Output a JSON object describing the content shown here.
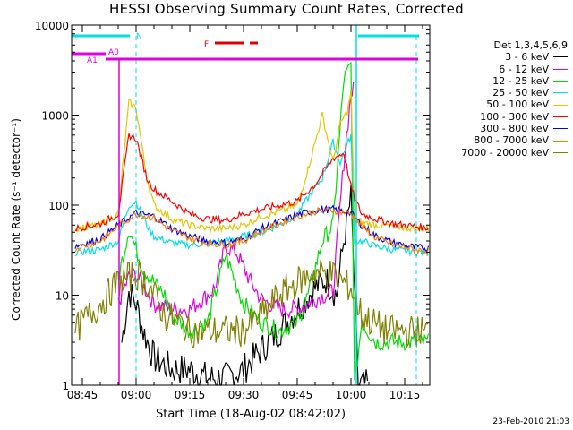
{
  "chart_data": {
    "type": "line",
    "title": "HESSI Observing Summary Count Rates, Corrected",
    "xlabel": "Start Time (18-Aug-02 08:42:02)",
    "ylabel": "Corrected Count Rate (s⁻¹ detector⁻¹)",
    "yscale": "log",
    "ylim": [
      1,
      10000
    ],
    "xlim_minutes": [
      "08:42",
      "10:22"
    ],
    "x_ticks": [
      "08:45",
      "09:00",
      "09:15",
      "09:30",
      "09:45",
      "10:00",
      "10:15"
    ],
    "y_ticks": [
      "1",
      "10",
      "100",
      "1000",
      "10000"
    ],
    "stamp": "23-Feb-2010 21:03",
    "legend_header": "Det 1,3,4,5,6,9",
    "legend_position": "right",
    "series": [
      {
        "name": "3 - 6 keV",
        "color": "#000000",
        "x": [
          "08:43",
          "08:50",
          "08:56",
          "08:58",
          "09:00",
          "09:02",
          "09:05",
          "09:10",
          "09:15",
          "09:20",
          "09:25",
          "09:30",
          "09:35",
          "09:40",
          "09:45",
          "09:50",
          "09:53",
          "09:56",
          "09:58",
          "10:00",
          "10:02",
          "10:05",
          "10:10"
        ],
        "y": [
          null,
          null,
          3,
          11,
          8,
          4,
          2,
          1.5,
          1.5,
          1.2,
          1.2,
          1.5,
          2.5,
          4,
          7,
          12,
          15,
          10,
          40,
          120,
          1,
          1,
          null
        ]
      },
      {
        "name": "6 - 12 keV",
        "color": "#e000e0",
        "x": [
          "08:55",
          "08:58",
          "09:00",
          "09:03",
          "09:05",
          "09:10",
          "09:15",
          "09:20",
          "09:22",
          "09:25",
          "09:28",
          "09:32",
          "09:35",
          "09:40",
          "09:45",
          "09:50",
          "09:55",
          "09:58",
          "10:00",
          "10:01"
        ],
        "y": [
          8,
          16,
          17,
          11,
          8,
          7,
          7,
          10,
          12,
          35,
          30,
          14,
          9,
          7,
          7,
          9,
          11,
          300,
          1700,
          2000
        ]
      },
      {
        "name": "12 - 25 keV",
        "color": "#00dd00",
        "x": [
          "08:43",
          "08:55",
          "08:58",
          "09:00",
          "09:02",
          "09:05",
          "09:08",
          "09:10",
          "09:15",
          "09:20",
          "09:25",
          "09:30",
          "09:35",
          "09:40",
          "09:45",
          "09:48",
          "09:52",
          "09:55",
          "09:58",
          "10:00",
          "10:01",
          "10:03",
          "10:07",
          "10:12",
          "10:18",
          "10:22"
        ],
        "y": [
          null,
          15,
          55,
          32,
          20,
          14,
          10,
          6,
          4,
          5,
          28,
          8,
          5,
          4,
          5,
          10,
          40,
          60,
          2500,
          3500,
          1,
          5,
          3,
          3,
          3,
          3
        ]
      },
      {
        "name": "25 - 50 keV",
        "color": "#00e0e0",
        "x": [
          "08:43",
          "08:50",
          "08:55",
          "08:58",
          "09:00",
          "09:03",
          "09:05",
          "09:10",
          "09:15",
          "09:20",
          "09:25",
          "09:30",
          "09:35",
          "09:40",
          "09:45",
          "09:48",
          "09:52",
          "09:55",
          "09:57",
          "10:00",
          "10:01",
          "10:03",
          "10:07",
          "10:12",
          "10:18",
          "10:22"
        ],
        "y": [
          30,
          32,
          40,
          100,
          110,
          60,
          45,
          38,
          36,
          38,
          40,
          45,
          50,
          60,
          80,
          120,
          200,
          500,
          300,
          600,
          40,
          40,
          35,
          32,
          30,
          30
        ]
      },
      {
        "name": "50 - 100 keV",
        "color": "#e0c800",
        "x": [
          "08:43",
          "08:50",
          "08:55",
          "08:58",
          "09:00",
          "09:03",
          "09:05",
          "09:10",
          "09:15",
          "09:20",
          "09:25",
          "09:30",
          "09:35",
          "09:40",
          "09:45",
          "09:48",
          "09:52",
          "09:55",
          "09:57",
          "09:59",
          "10:00",
          "10:01",
          "10:03",
          "10:07",
          "10:12",
          "10:18",
          "10:22"
        ],
        "y": [
          55,
          60,
          80,
          1400,
          1200,
          200,
          100,
          70,
          60,
          55,
          55,
          60,
          75,
          85,
          100,
          250,
          1000,
          300,
          800,
          1100,
          1800,
          70,
          65,
          60,
          58,
          55,
          55
        ]
      },
      {
        "name": "100 - 300 keV",
        "color": "#ff0000",
        "x": [
          "08:43",
          "08:50",
          "08:55",
          "08:58",
          "09:00",
          "09:03",
          "09:05",
          "09:10",
          "09:15",
          "09:20",
          "09:25",
          "09:30",
          "09:35",
          "09:40",
          "09:45",
          "09:50",
          "09:55",
          "09:58",
          "10:00",
          "10:01",
          "10:03",
          "10:07",
          "10:12",
          "10:18",
          "10:22"
        ],
        "y": [
          55,
          62,
          80,
          600,
          550,
          200,
          150,
          110,
          80,
          70,
          68,
          80,
          90,
          100,
          110,
          170,
          330,
          380,
          160,
          120,
          80,
          70,
          62,
          58,
          56
        ]
      },
      {
        "name": "300 - 800 keV",
        "color": "#0000ee",
        "x": [
          "08:43",
          "08:50",
          "08:55",
          "09:00",
          "09:05",
          "09:10",
          "09:15",
          "09:20",
          "09:25",
          "09:30",
          "09:35",
          "09:40",
          "09:45",
          "09:50",
          "09:55",
          "10:00",
          "10:03",
          "10:07",
          "10:12",
          "10:18",
          "10:22"
        ],
        "y": [
          35,
          42,
          60,
          82,
          75,
          55,
          45,
          40,
          38,
          42,
          55,
          65,
          78,
          88,
          90,
          82,
          60,
          45,
          38,
          34,
          33
        ]
      },
      {
        "name": "800 - 7000 keV",
        "color": "#ff8000",
        "x": [
          "08:43",
          "08:50",
          "08:55",
          "09:00",
          "09:05",
          "09:10",
          "09:15",
          "09:20",
          "09:25",
          "09:30",
          "09:35",
          "09:40",
          "09:45",
          "09:50",
          "09:55",
          "10:00",
          "10:03",
          "10:07",
          "10:12",
          "10:18",
          "10:22"
        ],
        "y": [
          33,
          40,
          58,
          80,
          72,
          52,
          43,
          38,
          36,
          40,
          52,
          62,
          75,
          85,
          88,
          80,
          58,
          43,
          36,
          32,
          31
        ]
      },
      {
        "name": "7000 - 20000 keV",
        "color": "#808000",
        "x": [
          "08:43",
          "08:45",
          "08:50",
          "08:55",
          "09:00",
          "09:03",
          "09:05",
          "09:08",
          "09:12",
          "09:15",
          "09:20",
          "09:25",
          "09:30",
          "09:35",
          "09:40",
          "09:45",
          "09:50",
          "09:55",
          "10:00",
          "10:03",
          "10:06",
          "10:10",
          "10:15",
          "10:22"
        ],
        "y": [
          4,
          5,
          8,
          14,
          17,
          14,
          10,
          6,
          5,
          4,
          4,
          4,
          4,
          6,
          10,
          14,
          18,
          17,
          12,
          6,
          5,
          4,
          4,
          4
        ]
      }
    ],
    "annotations": [
      {
        "text": "N",
        "color": "#00e0e0",
        "at": "09:00"
      },
      {
        "text": "A0",
        "color": "#e000e0",
        "at": "08:50"
      },
      {
        "text": "A1",
        "color": "#e000e0",
        "at": "08:47"
      },
      {
        "text": "F",
        "color": "#e00000",
        "at": "09:18"
      }
    ]
  }
}
